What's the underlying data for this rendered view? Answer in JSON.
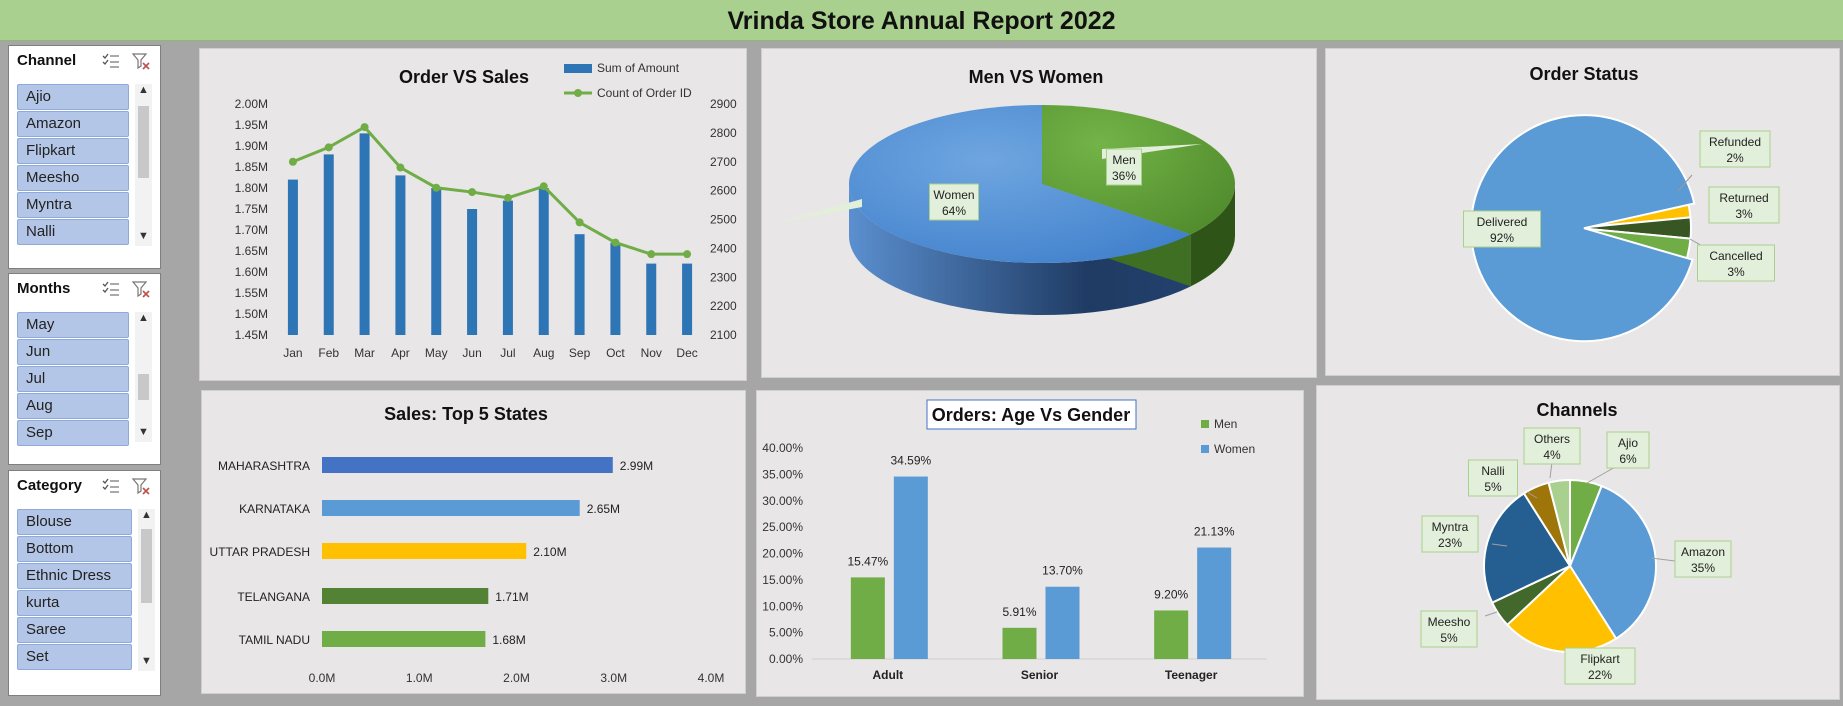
{
  "report_title": "Vrinda Store Annual Report 2022",
  "slicers": [
    {
      "title": "Channel",
      "items": [
        "Ajio",
        "Amazon",
        "Flipkart",
        "Meesho",
        "Myntra",
        "Nalli"
      ],
      "icons": [
        "multi-select-icon",
        "clear-filter-icon"
      ]
    },
    {
      "title": "Months",
      "items": [
        "May",
        "Jun",
        "Jul",
        "Aug",
        "Sep"
      ],
      "icons": [
        "multi-select-icon",
        "clear-filter-icon"
      ]
    },
    {
      "title": "Category",
      "items": [
        "Blouse",
        "Bottom",
        "Ethnic Dress",
        "kurta",
        "Saree",
        "Set"
      ],
      "icons": [
        "multi-select-icon",
        "clear-filter-icon"
      ]
    }
  ],
  "colors": {
    "blue": "#4472c4",
    "light_blue": "#5b9bd5",
    "green": "#70ad47",
    "dark_green": "#548235",
    "gold": "#ffc000",
    "navy": "#255e91",
    "olive": "#997300",
    "title_green": "#a9d08e"
  },
  "chart_data": [
    {
      "id": "order-vs-sales",
      "type": "bar",
      "title": "Order VS Sales",
      "categories": [
        "Jan",
        "Feb",
        "Mar",
        "Apr",
        "May",
        "Jun",
        "Jul",
        "Aug",
        "Sep",
        "Oct",
        "Nov",
        "Dec"
      ],
      "series": [
        {
          "name": "Sum of Amount",
          "type": "bar",
          "axis": "left",
          "values": [
            1.82,
            1.88,
            1.93,
            1.83,
            1.8,
            1.75,
            1.77,
            1.8,
            1.69,
            1.67,
            1.62,
            1.62
          ]
        },
        {
          "name": "Count of Order ID",
          "type": "line",
          "axis": "right",
          "values": [
            2700,
            2750,
            2820,
            2680,
            2610,
            2595,
            2575,
            2615,
            2490,
            2420,
            2380,
            2380
          ]
        }
      ],
      "y_left": {
        "min": 1.45,
        "max": 2.0,
        "ticks": [
          "2.00M",
          "1.95M",
          "1.90M",
          "1.85M",
          "1.80M",
          "1.75M",
          "1.70M",
          "1.65M",
          "1.60M",
          "1.55M",
          "1.50M",
          "1.45M"
        ]
      },
      "y_right": {
        "min": 2100,
        "max": 2900,
        "ticks": [
          "2900",
          "2800",
          "2700",
          "2600",
          "2500",
          "2400",
          "2300",
          "2200",
          "2100"
        ]
      },
      "legend_position": "top-right"
    },
    {
      "id": "men-vs-women",
      "type": "pie",
      "title": "Men VS Women",
      "slices": [
        {
          "label": "Men",
          "value": 36,
          "text": "36%"
        },
        {
          "label": "Women",
          "value": 64,
          "text": "64%"
        }
      ]
    },
    {
      "id": "order-status",
      "type": "pie",
      "title": "Order Status",
      "slices": [
        {
          "label": "Delivered",
          "value": 92,
          "text": "92%"
        },
        {
          "label": "Refunded",
          "value": 2,
          "text": "2%"
        },
        {
          "label": "Returned",
          "value": 3,
          "text": "3%"
        },
        {
          "label": "Cancelled",
          "value": 3,
          "text": "3%"
        }
      ]
    },
    {
      "id": "top-5-states",
      "type": "bar",
      "orientation": "horizontal",
      "title": "Sales: Top 5 States",
      "categories": [
        "MAHARASHTRA",
        "KARNATAKA",
        "UTTAR PRADESH",
        "TELANGANA",
        "TAMIL NADU"
      ],
      "values": [
        2.99,
        2.65,
        2.1,
        1.71,
        1.68
      ],
      "labels": [
        "2.99M",
        "2.65M",
        "2.10M",
        "1.71M",
        "1.68M"
      ],
      "x_ticks": [
        "0.0M",
        "1.0M",
        "2.0M",
        "3.0M",
        "4.0M"
      ],
      "xlim": [
        0,
        4
      ]
    },
    {
      "id": "age-vs-gender",
      "type": "bar",
      "title": "Orders: Age Vs Gender",
      "categories": [
        "Adult",
        "Senior",
        "Teenager"
      ],
      "series": [
        {
          "name": "Men",
          "values": [
            15.47,
            5.91,
            9.2
          ],
          "labels": [
            "15.47%",
            "5.91%",
            "9.20%"
          ]
        },
        {
          "name": "Women",
          "values": [
            34.59,
            13.7,
            21.13
          ],
          "labels": [
            "34.59%",
            "13.70%",
            "21.13%"
          ]
        }
      ],
      "y_ticks": [
        "40.00%",
        "35.00%",
        "30.00%",
        "25.00%",
        "20.00%",
        "15.00%",
        "10.00%",
        "5.00%",
        "0.00%"
      ],
      "ylim": [
        0,
        40
      ],
      "legend_position": "top-right"
    },
    {
      "id": "channels",
      "type": "pie",
      "title": "Channels",
      "slices": [
        {
          "label": "Ajio",
          "value": 6,
          "text": "6%"
        },
        {
          "label": "Amazon",
          "value": 35,
          "text": "35%"
        },
        {
          "label": "Flipkart",
          "value": 22,
          "text": "22%"
        },
        {
          "label": "Meesho",
          "value": 5,
          "text": "5%"
        },
        {
          "label": "Myntra",
          "value": 23,
          "text": "23%"
        },
        {
          "label": "Nalli",
          "value": 5,
          "text": "5%"
        },
        {
          "label": "Others",
          "value": 4,
          "text": "4%"
        }
      ]
    }
  ]
}
